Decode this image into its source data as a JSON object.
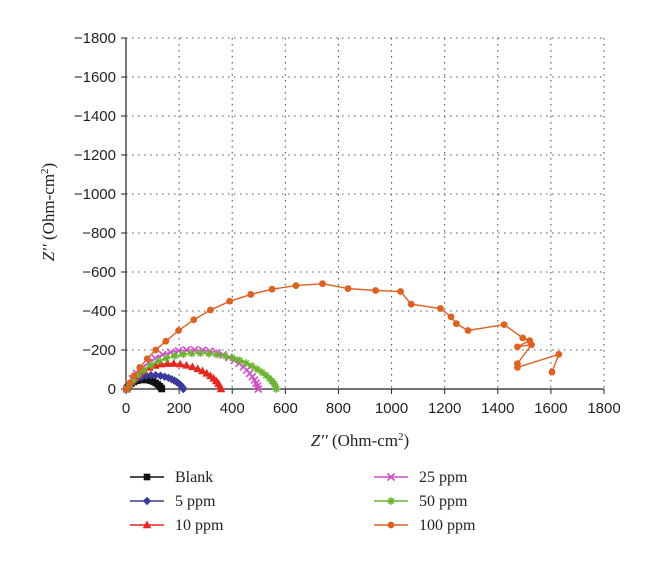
{
  "chart_data": {
    "type": "scatter",
    "title": "",
    "xlabel_main": "Z′′",
    "xlabel_unit": " (Ohm-cm",
    "xlabel_sup": "2",
    "xlabel_close": ")",
    "ylabel_main": "Z′′",
    "ylabel_unit": " (Ohm-cm",
    "ylabel_sup": "2",
    "ylabel_close": ")",
    "xlim": [
      0,
      1800
    ],
    "ylim": [
      0,
      -1800
    ],
    "x_ticks": [
      "0",
      "200",
      "400",
      "600",
      "800",
      "1000",
      "1200",
      "1400",
      "1600",
      "1800"
    ],
    "y_ticks": [
      "0",
      "−200",
      "−400",
      "−600",
      "−800",
      "−1000",
      "−1200",
      "−1400",
      "−1600",
      "−1800"
    ],
    "grid": true,
    "legend_position": "bottom",
    "series": [
      {
        "name": "Blank",
        "color": "#111111",
        "marker": "square",
        "points": [
          [
            2,
            0
          ],
          [
            6,
            -8
          ],
          [
            12,
            -18
          ],
          [
            20,
            -28
          ],
          [
            30,
            -36
          ],
          [
            42,
            -42
          ],
          [
            55,
            -46
          ],
          [
            68,
            -47
          ],
          [
            80,
            -46
          ],
          [
            92,
            -43
          ],
          [
            102,
            -38
          ],
          [
            112,
            -31
          ],
          [
            120,
            -23
          ],
          [
            127,
            -14
          ],
          [
            132,
            -6
          ],
          [
            135,
            0
          ]
        ]
      },
      {
        "name": "5 ppm",
        "color": "#3b3b9e",
        "marker": "diamond",
        "points": [
          [
            2,
            0
          ],
          [
            8,
            -12
          ],
          [
            16,
            -26
          ],
          [
            28,
            -40
          ],
          [
            42,
            -52
          ],
          [
            58,
            -62
          ],
          [
            76,
            -68
          ],
          [
            94,
            -71
          ],
          [
            112,
            -71
          ],
          [
            130,
            -68
          ],
          [
            146,
            -63
          ],
          [
            160,
            -57
          ],
          [
            172,
            -50
          ],
          [
            182,
            -43
          ],
          [
            191,
            -36
          ],
          [
            198,
            -29
          ],
          [
            204,
            -22
          ],
          [
            209,
            -15
          ],
          [
            213,
            -8
          ],
          [
            216,
            0
          ]
        ]
      },
      {
        "name": "10 ppm",
        "color": "#e8261e",
        "marker": "triangle",
        "points": [
          [
            3,
            0
          ],
          [
            10,
            -18
          ],
          [
            20,
            -38
          ],
          [
            34,
            -58
          ],
          [
            50,
            -78
          ],
          [
            68,
            -95
          ],
          [
            88,
            -110
          ],
          [
            110,
            -120
          ],
          [
            132,
            -127
          ],
          [
            156,
            -130
          ],
          [
            180,
            -130
          ],
          [
            204,
            -127
          ],
          [
            228,
            -121
          ],
          [
            250,
            -113
          ],
          [
            270,
            -103
          ],
          [
            288,
            -92
          ],
          [
            304,
            -80
          ],
          [
            318,
            -67
          ],
          [
            330,
            -54
          ],
          [
            340,
            -41
          ],
          [
            348,
            -28
          ],
          [
            354,
            -14
          ],
          [
            358,
            0
          ]
        ]
      },
      {
        "name": "25 ppm",
        "color": "#d04fc8",
        "marker": "x",
        "points": [
          [
            3,
            0
          ],
          [
            12,
            -25
          ],
          [
            24,
            -52
          ],
          [
            40,
            -80
          ],
          [
            60,
            -108
          ],
          [
            84,
            -135
          ],
          [
            110,
            -158
          ],
          [
            138,
            -176
          ],
          [
            168,
            -188
          ],
          [
            198,
            -196
          ],
          [
            228,
            -200
          ],
          [
            258,
            -201
          ],
          [
            288,
            -199
          ],
          [
            316,
            -194
          ],
          [
            342,
            -186
          ],
          [
            366,
            -175
          ],
          [
            388,
            -162
          ],
          [
            408,
            -147
          ],
          [
            426,
            -131
          ],
          [
            442,
            -114
          ],
          [
            455,
            -97
          ],
          [
            466,
            -80
          ],
          [
            476,
            -63
          ],
          [
            484,
            -46
          ],
          [
            490,
            -30
          ],
          [
            495,
            -15
          ],
          [
            498,
            0
          ]
        ]
      },
      {
        "name": "50 ppm",
        "color": "#6bb52e",
        "marker": "asterisk",
        "points": [
          [
            4,
            0
          ],
          [
            14,
            -22
          ],
          [
            28,
            -46
          ],
          [
            46,
            -72
          ],
          [
            68,
            -98
          ],
          [
            94,
            -122
          ],
          [
            122,
            -142
          ],
          [
            152,
            -158
          ],
          [
            184,
            -170
          ],
          [
            216,
            -178
          ],
          [
            248,
            -182
          ],
          [
            280,
            -183
          ],
          [
            312,
            -181
          ],
          [
            344,
            -176
          ],
          [
            374,
            -169
          ],
          [
            402,
            -159
          ],
          [
            428,
            -147
          ],
          [
            452,
            -133
          ],
          [
            474,
            -118
          ],
          [
            494,
            -102
          ],
          [
            512,
            -86
          ],
          [
            527,
            -70
          ],
          [
            540,
            -55
          ],
          [
            550,
            -40
          ],
          [
            558,
            -26
          ],
          [
            563,
            -12
          ],
          [
            566,
            0
          ]
        ]
      },
      {
        "name": "100 ppm",
        "color": "#e0601f",
        "marker": "circle",
        "points": [
          [
            2,
            0
          ],
          [
            14,
            -30
          ],
          [
            30,
            -68
          ],
          [
            52,
            -110
          ],
          [
            80,
            -155
          ],
          [
            112,
            -200
          ],
          [
            150,
            -245
          ],
          [
            198,
            -300
          ],
          [
            255,
            -355
          ],
          [
            318,
            -405
          ],
          [
            390,
            -450
          ],
          [
            470,
            -485
          ],
          [
            550,
            -512
          ],
          [
            640,
            -530
          ],
          [
            740,
            -540
          ],
          [
            836,
            -515
          ],
          [
            940,
            -505
          ],
          [
            1034,
            -500
          ],
          [
            1074,
            -435
          ],
          [
            1184,
            -413
          ],
          [
            1224,
            -370
          ],
          [
            1244,
            -335
          ],
          [
            1288,
            -300
          ],
          [
            1424,
            -330
          ],
          [
            1494,
            -262
          ],
          [
            1520,
            -248
          ],
          [
            1474,
            -216
          ],
          [
            1527,
            -227
          ],
          [
            1474,
            -130
          ],
          [
            1474,
            -111
          ],
          [
            1630,
            -178
          ],
          [
            1604,
            -87
          ]
        ]
      }
    ]
  }
}
